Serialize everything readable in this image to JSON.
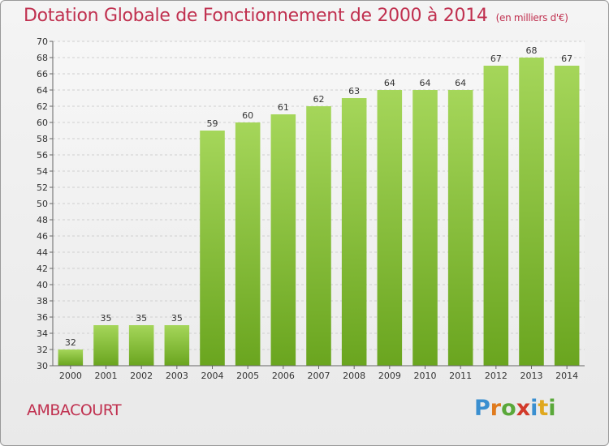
{
  "chart_data": {
    "type": "bar",
    "title": "Dotation Globale de Fonctionnement de 2000 à 2014",
    "subtitle": "(en milliers d'€)",
    "categories": [
      "2000",
      "2001",
      "2002",
      "2003",
      "2004",
      "2005",
      "2006",
      "2007",
      "2008",
      "2009",
      "2010",
      "2011",
      "2012",
      "2013",
      "2014"
    ],
    "values": [
      32,
      35,
      35,
      35,
      59,
      60,
      61,
      62,
      63,
      64,
      64,
      64,
      67,
      68,
      67
    ],
    "ylim": [
      30,
      70
    ],
    "ytick_step": 2,
    "grid": true,
    "bar_color_top": "#a5d65a",
    "bar_color_bottom": "#6aa51f"
  },
  "commune": "AMBACOURT",
  "logo": {
    "letters": [
      "P",
      "r",
      "o",
      "x",
      "i",
      "t",
      "i"
    ],
    "colors": [
      "#3a8fd0",
      "#e07b1e",
      "#5aa83a",
      "#d23a2a",
      "#3a8fd0",
      "#e0a81e",
      "#5aa83a"
    ]
  }
}
